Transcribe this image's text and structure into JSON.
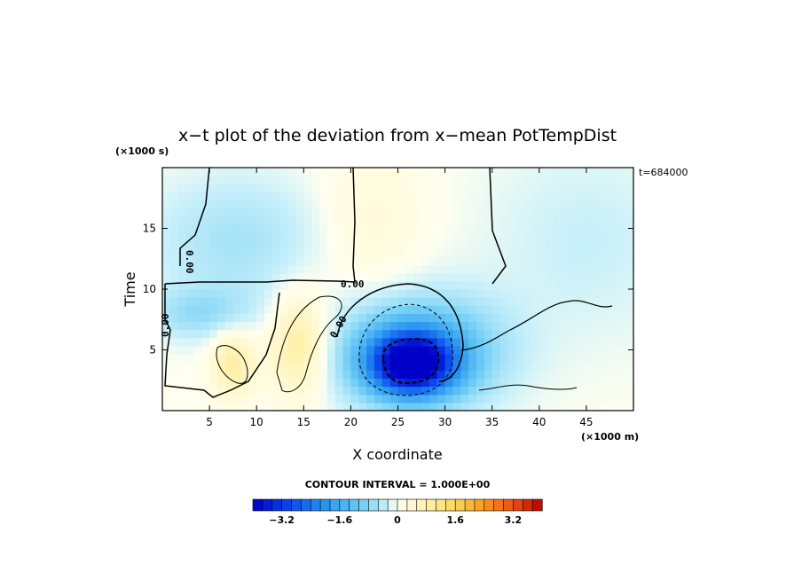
{
  "chart_data": {
    "type": "heatmap",
    "title": "x−t plot of the deviation from x−mean PotTempDist",
    "xlabel": "X coordinate",
    "ylabel": "Time",
    "x_unit": "(×1000 m)",
    "y_unit": "(×1000 s)",
    "xlim": [
      0,
      50
    ],
    "ylim": [
      0,
      20
    ],
    "x_ticks": [
      5,
      10,
      15,
      20,
      25,
      30,
      35,
      40,
      45
    ],
    "y_ticks": [
      5,
      10,
      15
    ],
    "time_label": "t=684000",
    "contour_interval_text": "CONTOUR INTERVAL = 1.000E+00",
    "contour_labels": [
      "0.00",
      "0.00",
      "0.00",
      "0.00"
    ],
    "colorbar": {
      "min": -4.0,
      "max": 4.0,
      "levels": 30,
      "tick_values": [
        -3.2,
        -1.6,
        0,
        1.6,
        3.2
      ],
      "tick_labels": [
        "−3.2",
        "−1.6",
        "0",
        "1.6",
        "3.2"
      ]
    },
    "features": [
      {
        "name": "cold-core",
        "x": 26.5,
        "t": 3.9,
        "value": -3.6,
        "sx": 3.0,
        "st": 1.7
      },
      {
        "name": "cold-ring",
        "x": 27.0,
        "t": 4.8,
        "value": -1.7,
        "sx": 6.0,
        "st": 3.2
      },
      {
        "name": "warm-band-left",
        "x": 7.5,
        "t": 4.0,
        "value": 0.9,
        "sx": 1.6,
        "st": 2.0
      },
      {
        "name": "warm-band-mid",
        "x": 14.5,
        "t": 5.5,
        "value": 1.0,
        "sx": 2.2,
        "st": 3.0
      },
      {
        "name": "warm-tongue",
        "x": 22.0,
        "t": 15.0,
        "value": 0.35,
        "sx": 4.0,
        "st": 5.0
      },
      {
        "name": "cool-upper-left",
        "x": 8.0,
        "t": 14.0,
        "value": -0.55,
        "sx": 7.0,
        "st": 4.0
      },
      {
        "name": "cool-upper-right",
        "x": 45.0,
        "t": 14.0,
        "value": -0.3,
        "sx": 8.0,
        "st": 6.0
      },
      {
        "name": "cool-lower-left",
        "x": 4.0,
        "t": 8.0,
        "value": -0.6,
        "sx": 4.0,
        "st": 1.5
      }
    ]
  }
}
